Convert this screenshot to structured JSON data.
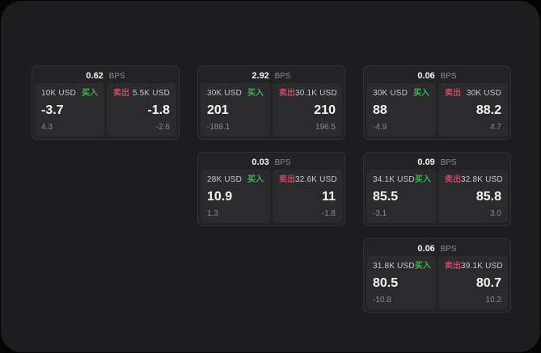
{
  "colors": {
    "page_bg": "#040404",
    "panel_bg": "#1d1d1f",
    "card_bg": "#232325",
    "card_border": "#333336",
    "tile_bg": "#2b2b2d",
    "text_primary": "#f4f4f5",
    "text_label": "#c9c9cc",
    "text_muted": "#8b8b90",
    "buy_green": "#41b452",
    "sell_red": "#c84b60"
  },
  "labels": {
    "bps": "BPS",
    "buy": "买入",
    "sell": "卖出"
  },
  "cards": [
    {
      "bps": "0.62",
      "col": 1,
      "row": 1,
      "buy": {
        "amount": "10K USD",
        "value": "-3.7",
        "secondary": "4.3"
      },
      "sell": {
        "amount": "5.5K USD",
        "value": "-1.8",
        "secondary": "-2.6"
      }
    },
    {
      "bps": "2.92",
      "col": 2,
      "row": 1,
      "buy": {
        "amount": "30K USD",
        "value": "201",
        "secondary": "-188.1"
      },
      "sell": {
        "amount": "30.1K USD",
        "value": "210",
        "secondary": "196.5"
      }
    },
    {
      "bps": "0.06",
      "col": 3,
      "row": 1,
      "buy": {
        "amount": "30K USD",
        "value": "88",
        "secondary": "-4.9"
      },
      "sell": {
        "amount": "30K USD",
        "value": "88.2",
        "secondary": "4.7"
      }
    },
    {
      "bps": "0.03",
      "col": 2,
      "row": 2,
      "buy": {
        "amount": "28K USD",
        "value": "10.9",
        "secondary": "1.3"
      },
      "sell": {
        "amount": "32.6K USD",
        "value": "11",
        "secondary": "-1.8"
      }
    },
    {
      "bps": "0.09",
      "col": 3,
      "row": 2,
      "buy": {
        "amount": "34.1K USD",
        "value": "85.5",
        "secondary": "-3.1"
      },
      "sell": {
        "amount": "32.8K USD",
        "value": "85.8",
        "secondary": "3.0"
      }
    },
    {
      "bps": "0.06",
      "col": 3,
      "row": 3,
      "buy": {
        "amount": "31.8K USD",
        "value": "80.5",
        "secondary": "-10.8"
      },
      "sell": {
        "amount": "39.1K USD",
        "value": "80.7",
        "secondary": "10.2"
      }
    }
  ]
}
